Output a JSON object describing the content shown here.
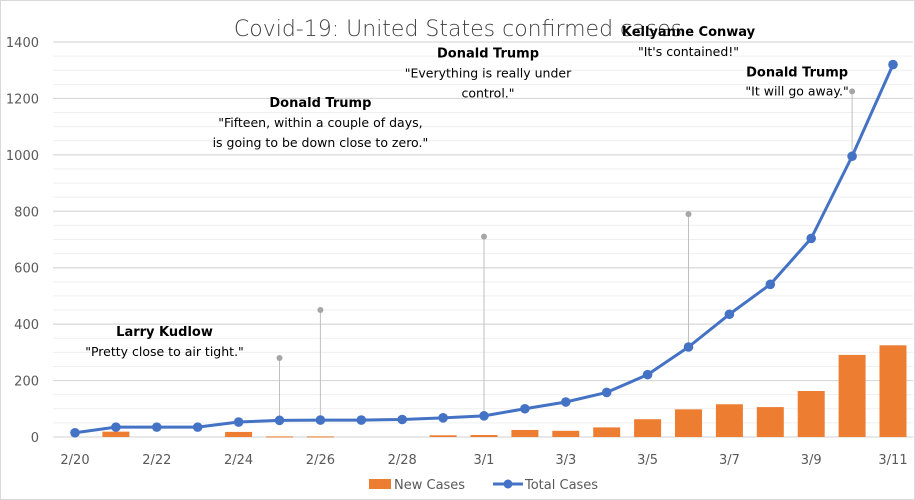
{
  "chart_data": {
    "type": "bar+line",
    "title": "Covid-19: United States confirmed cases",
    "xlabel": "",
    "ylabel": "",
    "ylim": [
      0,
      1400
    ],
    "y_ticks": [
      0,
      200,
      400,
      600,
      800,
      1000,
      1200,
      1400
    ],
    "y_minor_step": 50,
    "grid": true,
    "categories": [
      "2/20",
      "2/21",
      "2/22",
      "2/23",
      "2/24",
      "2/25",
      "2/26",
      "2/27",
      "2/28",
      "2/29",
      "3/1",
      "3/2",
      "3/3",
      "3/4",
      "3/5",
      "3/6",
      "3/7",
      "3/8",
      "3/9",
      "3/10",
      "3/11"
    ],
    "x_tick_labels": [
      "2/20",
      "2/22",
      "2/24",
      "2/26",
      "2/28",
      "3/1",
      "3/3",
      "3/5",
      "3/7",
      "3/9",
      "3/11"
    ],
    "series": [
      {
        "name": "New Cases",
        "type": "bar",
        "color": "#ED7D31",
        "values": [
          0,
          19,
          0,
          0,
          18,
          2,
          2,
          0,
          0,
          6,
          7,
          25,
          22,
          34,
          63,
          98,
          116,
          106,
          163,
          291,
          325
        ]
      },
      {
        "name": "Total Cases",
        "type": "line",
        "color": "#4472C4",
        "values": [
          15,
          35,
          35,
          35,
          53,
          59,
          60,
          60,
          62,
          68,
          75,
          100,
          124,
          158,
          221,
          319,
          435,
          541,
          704,
          995,
          1320
        ]
      }
    ],
    "legend": {
      "position": "bottom",
      "entries": [
        "New Cases",
        "Total Cases"
      ]
    },
    "annotations": [
      {
        "name": "Larry Kudlow",
        "quote": "\"Pretty close to air tight.\"",
        "date": "2/25",
        "marker_y": 280
      },
      {
        "name": "Donald Trump",
        "quote_lines": [
          "\"Fifteen, within a couple of days,",
          "is going to be down close to zero.\""
        ],
        "date": "2/26",
        "marker_y": 450
      },
      {
        "name": "Donald Trump",
        "quote_lines": [
          "\"Everything is really under",
          "control.\""
        ],
        "date": "3/1",
        "marker_y": 710
      },
      {
        "name": "Kellyanne Conway",
        "quote": "\"It's contained!\"",
        "date": "3/6",
        "marker_y": 790
      },
      {
        "name": "Donald Trump",
        "quote": "\"It will go away.\"",
        "date": "3/10",
        "marker_y": 1225
      }
    ]
  }
}
